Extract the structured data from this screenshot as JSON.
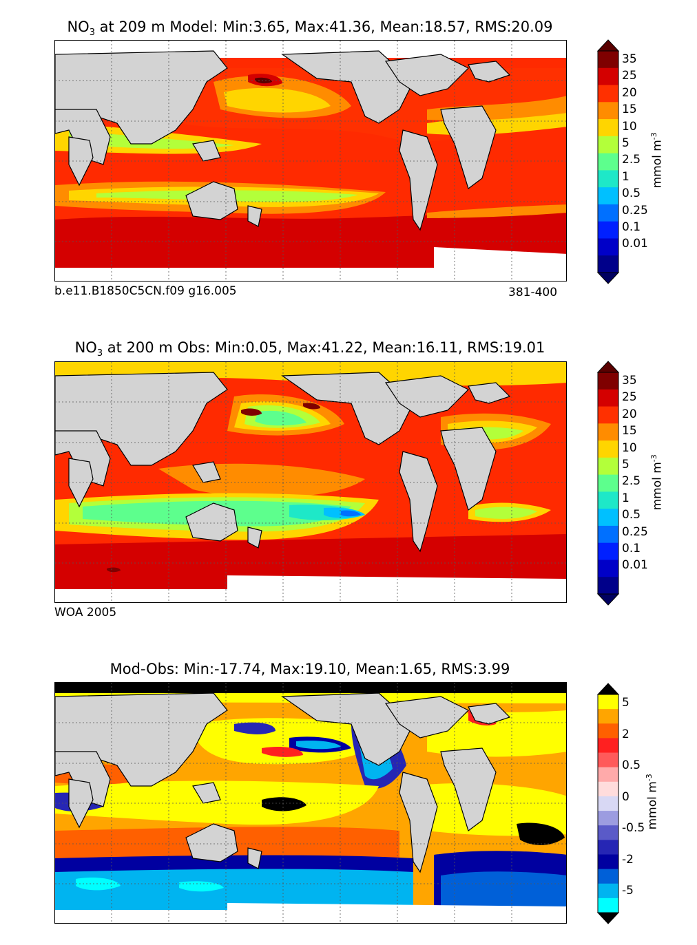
{
  "panels": [
    {
      "title_prefix": "NO",
      "title_sub": "3",
      "title_rest": " at 209 m Model: Min:3.65, Max:41.36, Mean:18.57, RMS:20.09",
      "footer_left": "b.e11.B1850C5CN.f09 g16.005",
      "footer_right": "381-400"
    },
    {
      "title_prefix": "NO",
      "title_sub": "3",
      "title_rest": " at 200 m Obs: Min:0.05, Max:41.22, Mean:16.11, RMS:19.01",
      "footer_left": "WOA 2005",
      "footer_right": ""
    },
    {
      "title_prefix": "",
      "title_sub": "",
      "title_rest": "Mod-Obs: Min:-17.74, Max:19.10, Mean:1.65, RMS:3.99",
      "footer_left": "",
      "footer_right": ""
    }
  ],
  "colorbars": {
    "nitrate": {
      "units": "mmol m",
      "units_sup": "-3",
      "labels": [
        "35",
        "25",
        "20",
        "15",
        "10",
        "5",
        "2.5",
        "1",
        "0.5",
        "0.25",
        "0.1",
        "0.01"
      ],
      "colors": [
        "#7f0000",
        "#d40000",
        "#ff3000",
        "#ff8c00",
        "#ffd500",
        "#b3ff3a",
        "#5dff8d",
        "#1ee8c8",
        "#00c0ff",
        "#0070ff",
        "#0020ff",
        "#0000c8",
        "#00008a"
      ],
      "over_color": "#5a0000",
      "under_color": "#000060"
    },
    "difference": {
      "units": "mmol m",
      "units_sup": "-3",
      "labels": [
        "5",
        "2",
        "0.5",
        "0",
        "-0.5",
        "-2",
        "-5"
      ],
      "colors": [
        "#ffff00",
        "#ffa500",
        "#ff6000",
        "#ff2020",
        "#ff5a5a",
        "#ffaaaa",
        "#ffdcdc",
        "#d8d8f4",
        "#9c9ce0",
        "#5a5ac8",
        "#2626b4",
        "#0000a0",
        "#0060d8",
        "#00b4f0",
        "#00ffff"
      ],
      "over_color": "#000000",
      "under_color": "#000000"
    }
  },
  "map_colors": {
    "land": "#d3d3d3",
    "nodata": "#ffffff",
    "coast": "#000000",
    "grid": "#555555"
  }
}
